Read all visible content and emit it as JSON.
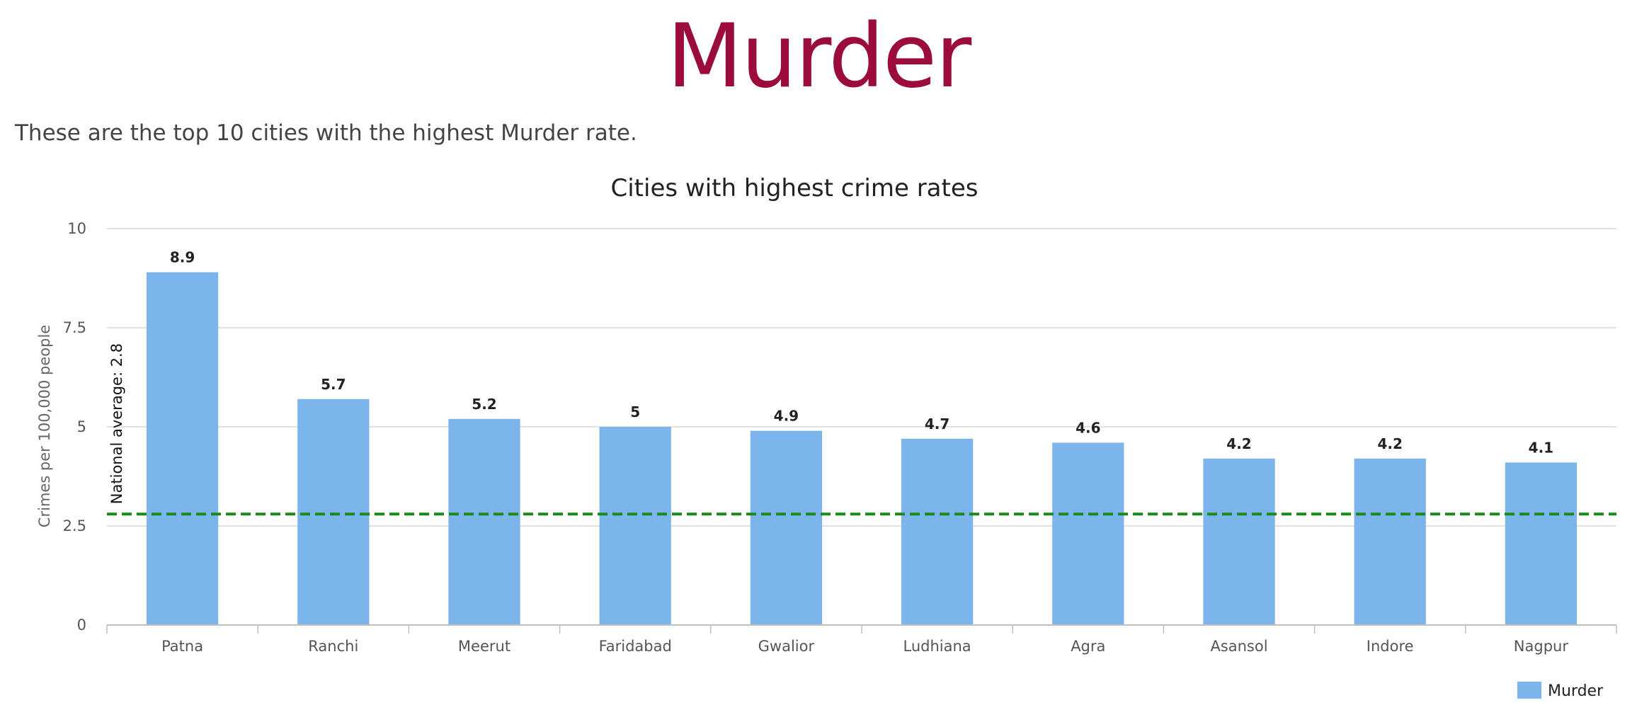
{
  "page": {
    "title": "Murder",
    "intro": "These are the top 10 cities with the highest Murder rate."
  },
  "colors": {
    "title": "#9b0b3c",
    "bar": "#7cb5ec",
    "reference_line": "#1a8a1a",
    "gridline": "#d9d9d9"
  },
  "chart_data": {
    "type": "bar",
    "title": "Cities with highest crime rates",
    "xlabel": "",
    "ylabel": "Crimes per 100,000 people",
    "ylim": [
      0,
      10
    ],
    "yticks": [
      0,
      2.5,
      5,
      7.5,
      10
    ],
    "ytick_labels": [
      "0",
      "2.5",
      "5",
      "7.5",
      "10"
    ],
    "grid": true,
    "categories": [
      "Patna",
      "Ranchi",
      "Meerut",
      "Faridabad",
      "Gwalior",
      "Ludhiana",
      "Agra",
      "Asansol",
      "Indore",
      "Nagpur"
    ],
    "series": [
      {
        "name": "Murder",
        "values": [
          8.9,
          5.7,
          5.2,
          5,
          4.9,
          4.7,
          4.6,
          4.2,
          4.2,
          4.1
        ],
        "labels": [
          "8.9",
          "5.7",
          "5.2",
          "5",
          "4.9",
          "4.7",
          "4.6",
          "4.2",
          "4.2",
          "4.1"
        ]
      }
    ],
    "reference_line": {
      "value": 2.8,
      "label": "National average: 2.8",
      "style": "dashed"
    },
    "legend": {
      "placement": "bottom-right",
      "entries": [
        "Murder"
      ]
    }
  }
}
